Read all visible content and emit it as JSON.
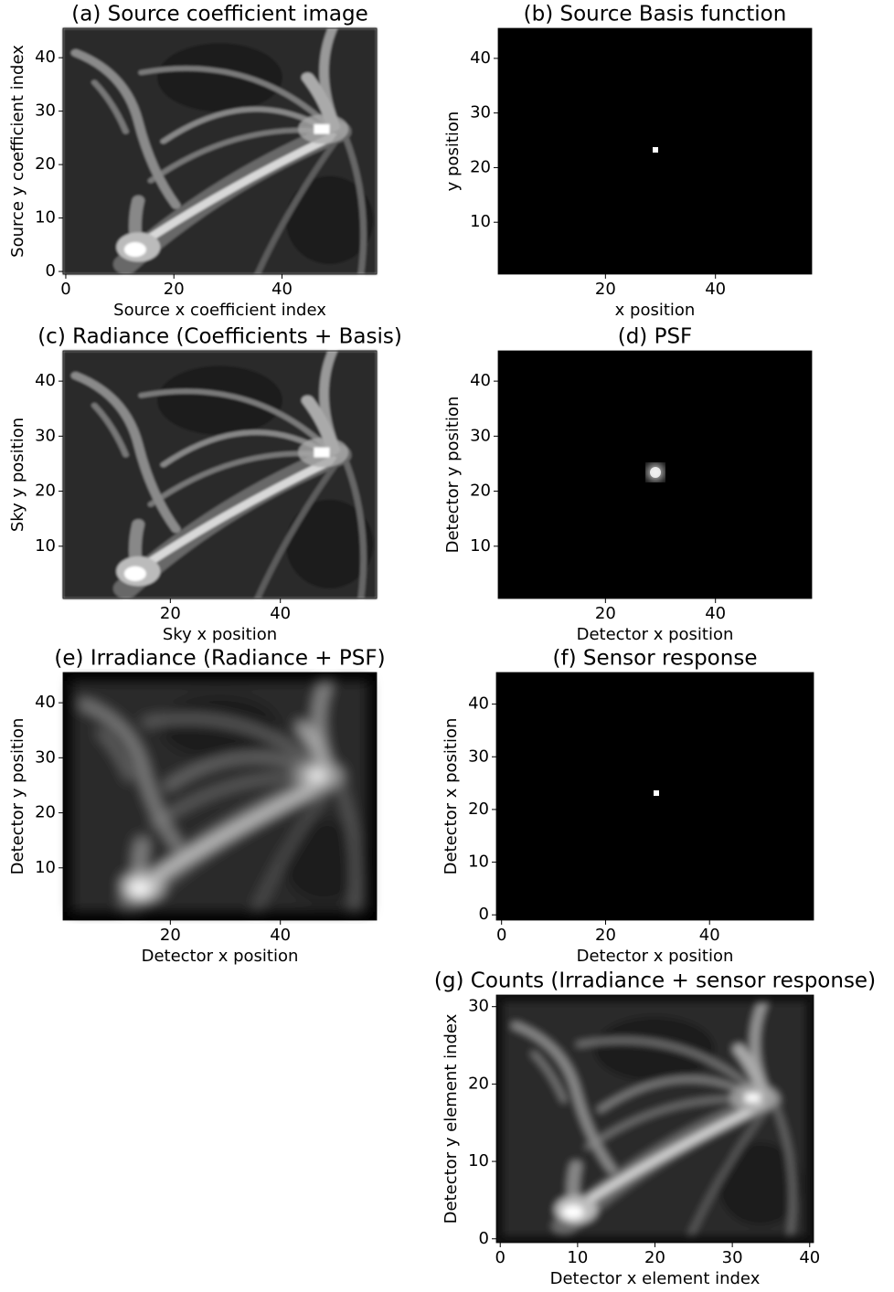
{
  "chart_data": [
    {
      "type": "image",
      "title": "(a) Source coefficient image",
      "xlabel": "Source x coefficient index",
      "ylabel": "Source y coefficient index",
      "xlim": [
        -0.5,
        57.5
      ],
      "ylim": [
        -0.5,
        45.5
      ],
      "xticks": [
        0,
        20,
        40
      ],
      "yticks": [
        0,
        10,
        20,
        30,
        40
      ]
    },
    {
      "type": "image",
      "title": "(b) Source Basis function",
      "xlabel": "x position",
      "ylabel": "y position",
      "xlim": [
        0.5,
        57.5
      ],
      "ylim": [
        0.5,
        45.5
      ],
      "xticks": [
        20,
        40
      ],
      "yticks": [
        10,
        20,
        30,
        40
      ]
    },
    {
      "type": "image",
      "title": "(c) Radiance (Coefficients + Basis)",
      "xlabel": "Sky x position",
      "ylabel": "Sky y position",
      "xlim": [
        0.5,
        57.5
      ],
      "ylim": [
        0.5,
        45.5
      ],
      "xticks": [
        20,
        40
      ],
      "yticks": [
        10,
        20,
        30,
        40
      ]
    },
    {
      "type": "image",
      "title": "(d) PSF",
      "xlabel": "Detector x position",
      "ylabel": "Detector y position",
      "xlim": [
        0.5,
        57.5
      ],
      "ylim": [
        0.5,
        45.5
      ],
      "xticks": [
        20,
        40
      ],
      "yticks": [
        10,
        20,
        30,
        40
      ]
    },
    {
      "type": "image",
      "title": "(e) Irradiance (Radiance + PSF)",
      "xlabel": "Detector x position",
      "ylabel": "Detector y position",
      "xlim": [
        0.5,
        57.5
      ],
      "ylim": [
        0.5,
        45.5
      ],
      "xticks": [
        20,
        40
      ],
      "yticks": [
        10,
        20,
        30,
        40
      ]
    },
    {
      "type": "image",
      "title": "(f) Sensor response",
      "xlabel": "Detector x position",
      "ylabel": "Detector x position",
      "xlim": [
        -1,
        60
      ],
      "ylim": [
        -1,
        46
      ],
      "xticks": [
        0,
        20,
        40
      ],
      "yticks": [
        0,
        10,
        20,
        30,
        40
      ]
    },
    {
      "type": "image",
      "title": "(g) Counts (Irradiance + sensor response)",
      "xlabel": "Detector x element index",
      "ylabel": "Detector y element index",
      "xlim": [
        -0.5,
        40.5
      ],
      "ylim": [
        -0.5,
        31.5
      ],
      "xticks": [
        0,
        10,
        20,
        30,
        40
      ],
      "yticks": [
        0,
        10,
        20,
        30
      ]
    }
  ]
}
